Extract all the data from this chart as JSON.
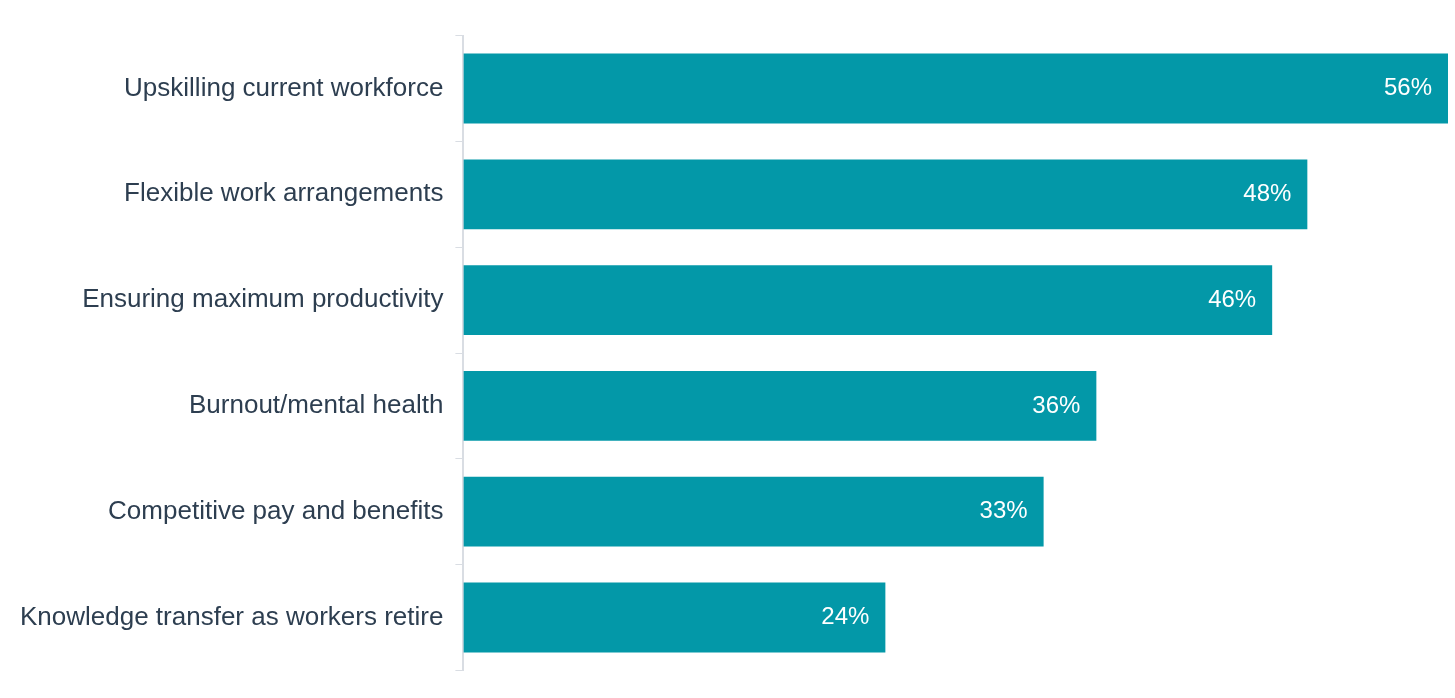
{
  "chart_data": {
    "type": "bar",
    "orientation": "horizontal",
    "categories": [
      "Upskilling current workforce",
      "Flexible work arrangements",
      "Ensuring maximum productivity",
      "Burnout/mental health",
      "Competitive pay and benefits",
      "Knowledge transfer as workers retire"
    ],
    "values": [
      56,
      48,
      46,
      36,
      33,
      24
    ],
    "value_labels": [
      "56%",
      "48%",
      "46%",
      "36%",
      "33%",
      "24%"
    ],
    "color": "#0398a8",
    "legend": false
  }
}
